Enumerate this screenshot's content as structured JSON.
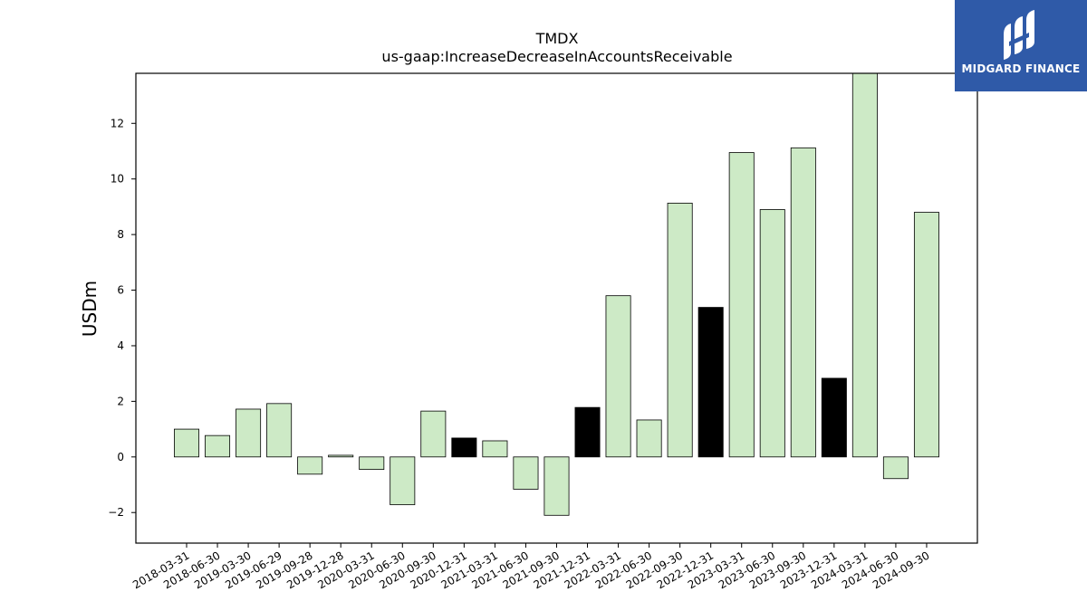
{
  "chart_data": {
    "type": "bar",
    "title": "TMDX",
    "subtitle": "us-gaap:IncreaseDecreaseInAccountsReceivable",
    "xlabel": "",
    "ylabel": "USDm",
    "ylim": [
      -3.1,
      13.8
    ],
    "yticks": [
      -2,
      0,
      2,
      4,
      6,
      8,
      10,
      12
    ],
    "grid": false,
    "categories": [
      "2018-03-31",
      "2018-06-30",
      "2019-03-30",
      "2019-06-29",
      "2019-09-28",
      "2019-12-28",
      "2020-03-31",
      "2020-06-30",
      "2020-09-30",
      "2020-12-31",
      "2021-03-31",
      "2021-06-30",
      "2021-09-30",
      "2021-12-31",
      "2022-03-31",
      "2022-06-30",
      "2022-09-30",
      "2022-12-31",
      "2023-03-31",
      "2023-06-30",
      "2023-09-30",
      "2023-12-31",
      "2024-03-31",
      "2024-06-30",
      "2024-09-30"
    ],
    "values": [
      1.0,
      0.77,
      1.72,
      1.92,
      -0.62,
      0.06,
      -0.45,
      -1.72,
      1.65,
      0.68,
      0.58,
      -1.16,
      -2.1,
      1.78,
      5.8,
      1.33,
      9.13,
      5.38,
      10.95,
      8.9,
      11.12,
      2.83,
      13.8,
      -0.78,
      8.8
    ],
    "highlight": [
      false,
      false,
      false,
      false,
      false,
      false,
      false,
      false,
      false,
      true,
      false,
      false,
      false,
      true,
      false,
      false,
      false,
      true,
      false,
      false,
      false,
      true,
      false,
      false,
      false
    ],
    "colors": {
      "normal": "#cdeac6",
      "highlight": "#000000",
      "edge": "#000000"
    }
  },
  "logo": {
    "text": "MIDGARD FINANCE",
    "background": "#2f5aa8"
  }
}
